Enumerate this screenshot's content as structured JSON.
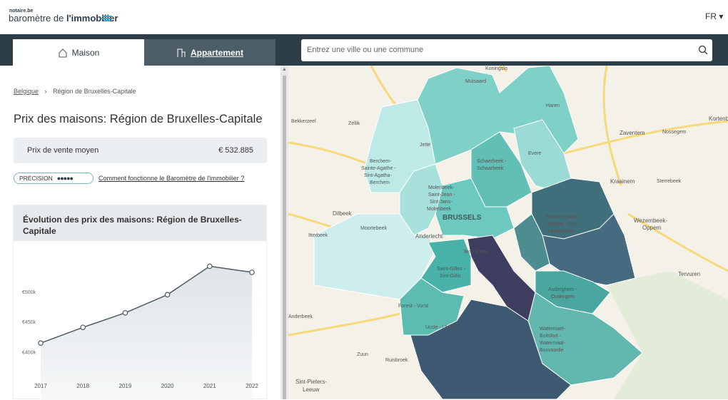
{
  "header": {
    "brand_top": "notaire.be",
    "brand_light": "baromètre de ",
    "brand_bold": "l'immobilier",
    "language": "FR"
  },
  "tabs": [
    "Maison",
    "Appartement"
  ],
  "search": {
    "placeholder": "Entrez une ville ou une commune"
  },
  "breadcrumb": [
    "Belgique",
    "Région de Bruxelles-Capitale"
  ],
  "page_title": "Prix des maisons: Région de Bruxelles-Capitale",
  "price": {
    "label": "Prix de vente moyen",
    "value": "€ 532.885"
  },
  "precision": {
    "label": "PRÉCISION",
    "link": "Comment fonctionne le Baromètre de l'immobilier ?"
  },
  "chart_data": {
    "type": "line",
    "title": "Évolution des prix des maisons: Région de Bruxelles-Capitale",
    "categories": [
      "2017",
      "2018",
      "2019",
      "2020",
      "2021",
      "2022"
    ],
    "values": [
      416000,
      442000,
      466000,
      496000,
      543000,
      533000
    ],
    "color": "#4d5b63",
    "ylim": [
      355000,
      580000
    ],
    "yticks": [
      {
        "value": 400000,
        "label": "€400k"
      },
      {
        "value": 450000,
        "label": "€450k"
      },
      {
        "value": 500000,
        "label": "€500k"
      }
    ],
    "grid": false
  },
  "map": {
    "labels": [
      "Koningslo",
      "Mutsaard",
      "Haren",
      "Bekkerzeel",
      "Zellik",
      "Jette",
      "Evere",
      "Zaventem",
      "Nossegem",
      "Kortenb",
      "Schaerbeek -",
      "Schaarbeek",
      "Berchem-",
      "Sainte-Agathe -",
      "Sint-Agatha-",
      "Berchem",
      "Molenbeek-",
      "Saint-Jean -",
      "Sint-Jans-",
      "Molenbeek",
      "Kraainem",
      "Sterrebeek",
      "Dilbeek",
      "BRUSSELS",
      "Woluwe-Saint-",
      "Lambert - Sint-",
      "Lambrechts-",
      "Wezembeek-",
      "Oppem",
      "Itterbeek",
      "Moortebeek",
      "Anderlecht",
      "lles - Elsen",
      "Saint-Gilles -",
      "Sint-Gillis",
      "Tervuren",
      "Auderghem -",
      "Oudergem",
      "Forest - Vorst",
      "Anderbeek",
      "Uccle - Ukkel",
      "Watermael-",
      "Boitsfort -",
      "Watermaal-",
      "Bosvoorde",
      "Zuun",
      "Ruisbroek",
      "Sint-Pieters-",
      "Leeuw"
    ]
  }
}
